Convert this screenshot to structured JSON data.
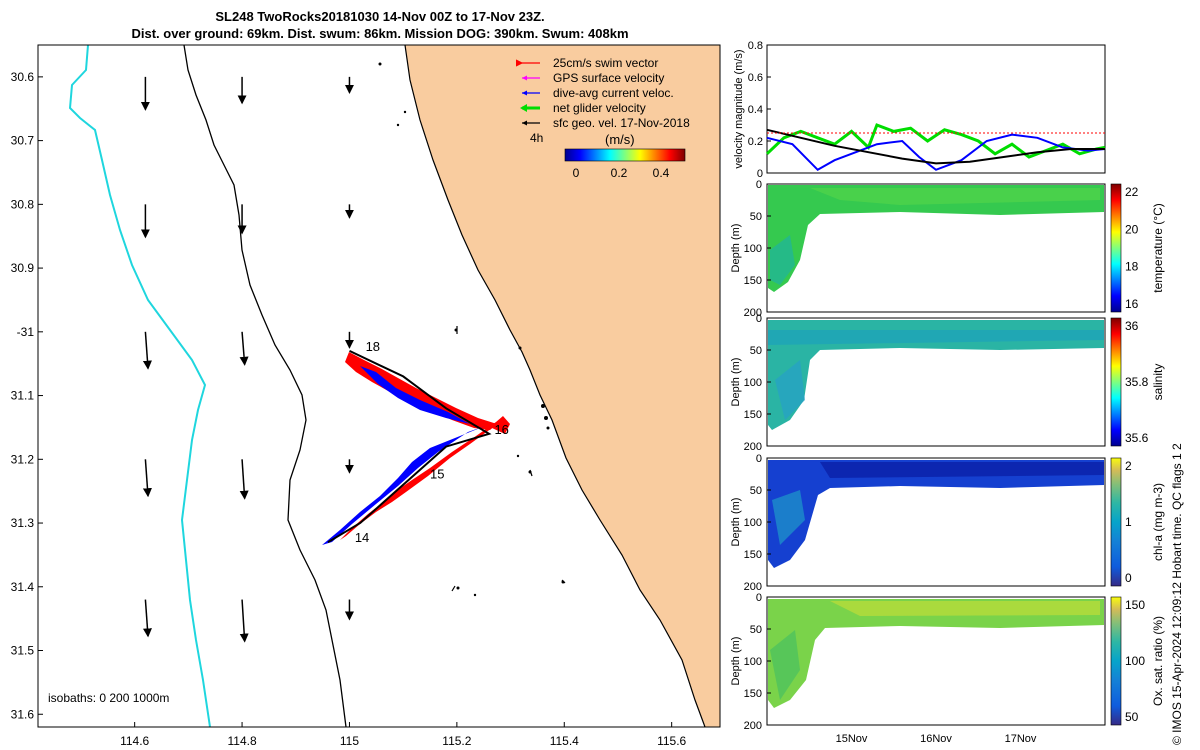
{
  "title": {
    "line1": "SL248 TwoRocks20181030 14-Nov 00Z to 17-Nov 23Z.",
    "line2": "Dist. over ground: 69km. Dist. swum: 86km. Mission DOG: 390km. Swum: 408km"
  },
  "credit": "© IMOS 15-Apr-2024 12:09:12 Hobart time. QC flags 1  2",
  "colors": {
    "land": "#f9cc9f",
    "isobath200": "#000000",
    "isobath1000": "#1fd6de",
    "swim": "#ff0000",
    "gps": "#ff00ff",
    "dive": "#0000ff",
    "net": "#00dd00",
    "geo": "#000000"
  },
  "chart_data": [
    {
      "type": "map",
      "xlim": [
        114.42,
        115.69
      ],
      "ylim": [
        -31.62,
        -30.55
      ],
      "x_ticks": [
        114.6,
        114.8,
        115,
        115.2,
        115.4,
        115.6
      ],
      "x_tick_labels": [
        "114.6",
        "114.8",
        "115",
        "115.2",
        "115.4",
        "115.6"
      ],
      "y_ticks": [
        -30.6,
        -30.7,
        -30.8,
        -30.9,
        -31.0,
        -31.1,
        -31.2,
        -31.3,
        -31.4,
        -31.5,
        -31.6
      ],
      "y_tick_labels": [
        "30.6",
        "30.7",
        "30.8",
        "30.9",
        "-31",
        "31.1",
        "31.2",
        "31.3",
        "31.4",
        "31.5",
        "31.6"
      ],
      "legend": [
        {
          "label": "25cm/s swim vector",
          "color": "#ff0000"
        },
        {
          "label": "GPS surface velocity",
          "color": "#ff00ff"
        },
        {
          "label": "dive-avg current veloc.",
          "color": "#0000ff"
        },
        {
          "label": "net glider velocity",
          "color": "#00dd00"
        },
        {
          "label": "sfc geo. vel. 17-Nov-2018",
          "color": "#000000"
        }
      ],
      "legend_position": "top-right",
      "scale_label": "4h",
      "colorbar": {
        "label": "(m/s)",
        "ticks": [
          "0",
          "0.2",
          "0.4"
        ],
        "range": [
          -0.05,
          0.5
        ]
      },
      "isobath_label": "isobaths: 0   200  1000m",
      "track_day_labels": [
        {
          "text": "14",
          "lon": 115.01,
          "lat": -31.33
        },
        {
          "text": "15",
          "lon": 115.15,
          "lat": -31.23
        },
        {
          "text": "16",
          "lon": 115.27,
          "lat": -31.16
        },
        {
          "text": "18",
          "lon": 115.03,
          "lat": -31.03
        }
      ],
      "track": [
        {
          "lon": 114.96,
          "lat": -31.33
        },
        {
          "lon": 115.02,
          "lat": -31.3
        },
        {
          "lon": 115.1,
          "lat": -31.24
        },
        {
          "lon": 115.18,
          "lat": -31.18
        },
        {
          "lon": 115.26,
          "lat": -31.16
        },
        {
          "lon": 115.18,
          "lat": -31.12
        },
        {
          "lon": 115.1,
          "lat": -31.07
        },
        {
          "lon": 115.0,
          "lat": -31.03
        }
      ],
      "geo_vectors": [
        {
          "lon": 114.62,
          "lat": -30.6,
          "u": 0.0,
          "v": -0.25
        },
        {
          "lon": 114.8,
          "lat": -30.6,
          "u": 0.0,
          "v": -0.2
        },
        {
          "lon": 115.0,
          "lat": -30.6,
          "u": 0.0,
          "v": -0.12
        },
        {
          "lon": 114.62,
          "lat": -30.8,
          "u": 0.0,
          "v": -0.25
        },
        {
          "lon": 114.8,
          "lat": -30.8,
          "u": 0.0,
          "v": -0.22
        },
        {
          "lon": 115.0,
          "lat": -30.8,
          "u": 0.0,
          "v": -0.1
        },
        {
          "lon": 114.62,
          "lat": -31.0,
          "u": 0.02,
          "v": -0.28
        },
        {
          "lon": 114.8,
          "lat": -31.0,
          "u": 0.02,
          "v": -0.25
        },
        {
          "lon": 115.0,
          "lat": -31.0,
          "u": 0.0,
          "v": -0.12
        },
        {
          "lon": 114.62,
          "lat": -31.2,
          "u": 0.02,
          "v": -0.28
        },
        {
          "lon": 114.8,
          "lat": -31.2,
          "u": 0.02,
          "v": -0.3
        },
        {
          "lon": 115.0,
          "lat": -31.2,
          "u": 0.0,
          "v": -0.1
        },
        {
          "lon": 114.62,
          "lat": -31.42,
          "u": 0.02,
          "v": -0.28
        },
        {
          "lon": 114.8,
          "lat": -31.42,
          "u": 0.02,
          "v": -0.32
        },
        {
          "lon": 115.0,
          "lat": -31.42,
          "u": 0.0,
          "v": -0.15
        }
      ]
    },
    {
      "type": "line",
      "ylabel": "velocity magnitude (m/s)",
      "ylim": [
        0,
        0.8
      ],
      "y_ticks": [
        0,
        0.2,
        0.4,
        0.6,
        0.8
      ],
      "xlim": [
        14.0,
        18.0
      ],
      "series": [
        {
          "color": "#00dd00",
          "x": [
            14.0,
            14.2,
            14.4,
            14.6,
            14.8,
            15.0,
            15.2,
            15.3,
            15.5,
            15.7,
            15.9,
            16.1,
            16.3,
            16.5,
            16.7,
            16.9,
            17.1,
            17.3,
            17.5,
            17.7,
            17.9,
            18.0
          ],
          "values": [
            0.12,
            0.22,
            0.26,
            0.22,
            0.18,
            0.26,
            0.16,
            0.3,
            0.26,
            0.28,
            0.2,
            0.27,
            0.24,
            0.2,
            0.12,
            0.18,
            0.1,
            0.14,
            0.18,
            0.12,
            0.15,
            0.16
          ]
        },
        {
          "color": "#0000ff",
          "x": [
            14.0,
            14.3,
            14.6,
            14.8,
            15.0,
            15.3,
            15.6,
            15.8,
            16.0,
            16.3,
            16.6,
            16.9,
            17.2,
            17.5,
            17.8,
            18.0
          ],
          "values": [
            0.22,
            0.18,
            0.02,
            0.08,
            0.12,
            0.18,
            0.2,
            0.1,
            0.02,
            0.08,
            0.2,
            0.24,
            0.22,
            0.16,
            0.14,
            0.15
          ]
        },
        {
          "color": "#000000",
          "x": [
            14.0,
            14.4,
            14.8,
            15.2,
            15.6,
            16.0,
            16.4,
            16.8,
            17.2,
            17.6,
            18.0
          ],
          "values": [
            0.27,
            0.22,
            0.17,
            0.13,
            0.09,
            0.06,
            0.07,
            0.1,
            0.13,
            0.15,
            0.15
          ]
        },
        {
          "color": "#ff0000",
          "x": [
            14.0,
            18.0
          ],
          "values": [
            0.25,
            0.25
          ]
        }
      ],
      "x_tick_labels": [
        "15Nov",
        "16Nov",
        "17Nov"
      ]
    },
    {
      "type": "heatmap",
      "ylabel": "Depth (m)",
      "y_ticks": [
        0,
        50,
        100,
        150,
        200
      ],
      "colorbar_label": "temperature (°C)",
      "colorbar_ticks": [
        "16",
        "18",
        "20",
        "22"
      ]
    },
    {
      "type": "heatmap",
      "ylabel": "Depth (m)",
      "y_ticks": [
        0,
        50,
        100,
        150,
        200
      ],
      "colorbar_label": "salinity",
      "colorbar_ticks": [
        "35.6",
        "35.8",
        "36"
      ]
    },
    {
      "type": "heatmap",
      "ylabel": "Depth (m)",
      "y_ticks": [
        0,
        50,
        100,
        150,
        200
      ],
      "colorbar_label": "chl-a (mg m-3)",
      "colorbar_ticks": [
        "0",
        "1",
        "2"
      ]
    },
    {
      "type": "heatmap",
      "ylabel": "Depth (m)",
      "y_ticks": [
        0,
        50,
        100,
        150,
        200
      ],
      "colorbar_label": "Ox. sat. ratio (%)",
      "colorbar_ticks": [
        "50",
        "100",
        "150"
      ],
      "x_tick_labels": [
        "15Nov",
        "16Nov",
        "17Nov"
      ]
    }
  ]
}
